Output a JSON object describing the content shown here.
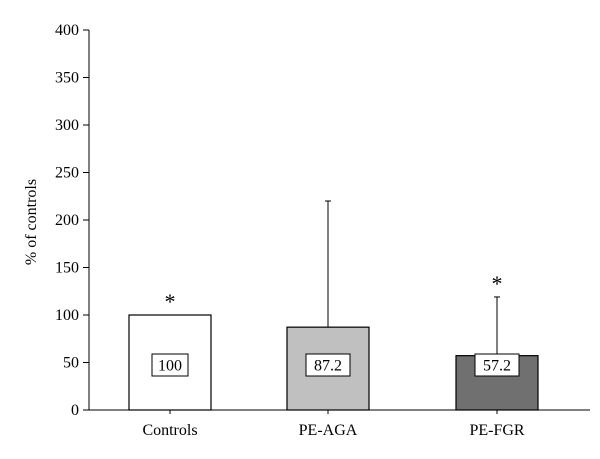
{
  "chart_data": {
    "type": "bar",
    "title": "",
    "xlabel": "",
    "ylabel": "% of controls",
    "ylim": [
      0,
      400
    ],
    "yticks": [
      0,
      50,
      100,
      150,
      200,
      250,
      300,
      350,
      400
    ],
    "categories": [
      "Controls",
      "PE-AGA",
      "PE-FGR"
    ],
    "values": [
      100,
      87.2,
      57.2
    ],
    "value_labels": [
      "100",
      "87.2",
      "57.2"
    ],
    "error_upper": [
      100,
      220,
      119
    ],
    "significance": [
      "*",
      "",
      "*"
    ],
    "bar_colors": [
      "#ffffff",
      "#c0c0c0",
      "#707070"
    ],
    "grid": false,
    "legend": "none"
  }
}
